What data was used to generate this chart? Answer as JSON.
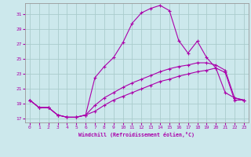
{
  "xlabel": "Windchill (Refroidissement éolien,°C)",
  "bg_color": "#cce8ec",
  "grid_color": "#aacccc",
  "line_color": "#aa00aa",
  "xlim": [
    -0.5,
    23.5
  ],
  "ylim": [
    16.5,
    32.5
  ],
  "yticks": [
    17,
    19,
    21,
    23,
    25,
    27,
    29,
    31
  ],
  "xticks": [
    0,
    1,
    2,
    3,
    4,
    5,
    6,
    7,
    8,
    9,
    10,
    11,
    12,
    13,
    14,
    15,
    16,
    17,
    18,
    19,
    20,
    21,
    22,
    23
  ],
  "line1_x": [
    0,
    1,
    2,
    3,
    4,
    5,
    6,
    7,
    8,
    9,
    10,
    11,
    12,
    13,
    14,
    15,
    16,
    17,
    18,
    19,
    20,
    21,
    22,
    23
  ],
  "line1_y": [
    19.5,
    18.5,
    18.5,
    17.5,
    17.2,
    17.2,
    17.5,
    22.5,
    24.0,
    25.2,
    27.2,
    29.8,
    31.2,
    31.8,
    32.2,
    31.5,
    27.5,
    25.8,
    27.4,
    25.2,
    23.8,
    20.5,
    19.8,
    19.5
  ],
  "line2_x": [
    0,
    1,
    2,
    3,
    4,
    5,
    6,
    7,
    8,
    9,
    10,
    11,
    12,
    13,
    14,
    15,
    16,
    17,
    18,
    19,
    20,
    21,
    22,
    23
  ],
  "line2_y": [
    19.5,
    18.5,
    18.5,
    17.5,
    17.2,
    17.2,
    17.5,
    18.8,
    19.8,
    20.5,
    21.2,
    21.8,
    22.3,
    22.8,
    23.3,
    23.7,
    24.0,
    24.2,
    24.5,
    24.5,
    24.2,
    23.5,
    19.8,
    19.5
  ],
  "line3_x": [
    0,
    1,
    2,
    3,
    4,
    5,
    6,
    7,
    8,
    9,
    10,
    11,
    12,
    13,
    14,
    15,
    16,
    17,
    18,
    19,
    20,
    21,
    22,
    23
  ],
  "line3_y": [
    19.5,
    18.5,
    18.5,
    17.5,
    17.2,
    17.2,
    17.5,
    18.0,
    18.8,
    19.5,
    20.0,
    20.5,
    21.0,
    21.5,
    22.0,
    22.3,
    22.7,
    23.0,
    23.3,
    23.5,
    23.8,
    23.2,
    19.5,
    19.5
  ]
}
